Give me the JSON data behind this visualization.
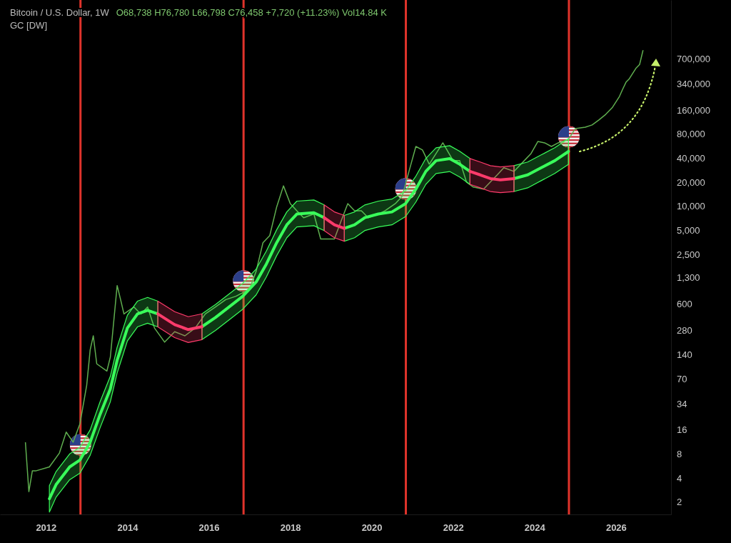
{
  "chart_data": {
    "type": "line",
    "title": "Bitcoin / U.S. Dollar, 1W",
    "subtitle": "GC [DW]",
    "annotations": [
      "O68,738 H76,780 L66,798 C76,458 +7,720 (+11.23%) Vol14.84 K"
    ],
    "log": "y",
    "grid": false,
    "xlim": [
      "2010-11-15",
      "2027-05-10"
    ],
    "xticks": [
      {
        "value": "2012",
        "label": "2012"
      },
      {
        "value": "2014",
        "label": "2014"
      },
      {
        "value": "2016",
        "label": "2016"
      },
      {
        "value": "2018",
        "label": "2018"
      },
      {
        "value": "2020",
        "label": "2020"
      },
      {
        "value": "2022",
        "label": "2022"
      },
      {
        "value": "2024",
        "label": "2024"
      },
      {
        "value": "2026",
        "label": "2026"
      }
    ],
    "ylim": [
      1.4,
      3800000
    ],
    "yticks": [
      2,
      4,
      8,
      16,
      34,
      70,
      140,
      280,
      600,
      {
        "value": 1300,
        "label": "1,300"
      },
      {
        "value": 2500,
        "label": "2,500"
      },
      {
        "value": 5000,
        "label": "5,000"
      },
      {
        "value": 10000,
        "label": "10,000"
      },
      {
        "value": 20000,
        "label": "20,000"
      },
      {
        "value": 40000,
        "label": "40,000"
      },
      {
        "value": 80000,
        "label": "80,000"
      },
      {
        "value": 160000,
        "label": "160,000"
      },
      {
        "value": 340000,
        "label": "340,000"
      },
      {
        "value": 700000,
        "label": "700,000"
      }
    ],
    "ref_lines": [
      {
        "axis": "x",
        "value": "2012-11-06",
        "color": "#e0332b"
      },
      {
        "axis": "x",
        "value": "2016-11-08",
        "color": "#e0332b"
      },
      {
        "axis": "x",
        "value": "2020-11-03",
        "color": "#e0332b"
      },
      {
        "axis": "x",
        "value": "2024-11-05",
        "color": "#e0332b"
      }
    ],
    "series": [
      {
        "color": "#5fae4f",
        "x": [
          "2011-07",
          "2011-08",
          "2011-09",
          "2011-10",
          "2012-02",
          "2012-05",
          "2012-07",
          "2012-09",
          "2012-11",
          "2013-01",
          "2013-02",
          "2013-03",
          "2013-04",
          "2013-07",
          "2013-08",
          "2013-10",
          "2013-11",
          "2013-12",
          "2014-03",
          "2014-05",
          "2014-07",
          "2014-09",
          "2014-12",
          "2015-03",
          "2015-06",
          "2015-09",
          "2015-12",
          "2016-03",
          "2016-06",
          "2016-09",
          "2017-01",
          "2017-03",
          "2017-05",
          "2017-07",
          "2017-09",
          "2017-11",
          "2018-01",
          "2018-03",
          "2018-05",
          "2018-08",
          "2018-10",
          "2018-12",
          "2019-02",
          "2019-04",
          "2019-06",
          "2019-08",
          "2019-10",
          "2019-12",
          "2020-03",
          "2020-05",
          "2020-08",
          "2020-10",
          "2020-12",
          "2021-02",
          "2021-04",
          "2021-06",
          "2021-08",
          "2021-10",
          "2022-01",
          "2022-03",
          "2022-05",
          "2022-07",
          "2022-10",
          "2022-12",
          "2023-02",
          "2023-04",
          "2023-07",
          "2023-10",
          "2023-12",
          "2024-02",
          "2024-04",
          "2024-06",
          "2024-08",
          "2024-11",
          "2025-01",
          "2025-04",
          "2025-06",
          "2025-08",
          "2025-10",
          "2025-12",
          "2026-02",
          "2026-03",
          "2026-04",
          "2026-05",
          "2026-07",
          "2026-08",
          "2026-09"
        ],
        "values": [
          11.2,
          2.7,
          4.9,
          4.9,
          5.5,
          8.2,
          15,
          11.2,
          19,
          58,
          160,
          240,
          107,
          87,
          130,
          1020,
          680,
          450,
          550,
          450,
          550,
          300,
          200,
          270,
          240,
          300,
          450,
          550,
          680,
          750,
          920,
          1540,
          3500,
          4300,
          9800,
          18000,
          10800,
          8800,
          7200,
          8000,
          3900,
          3900,
          3900,
          6500,
          10800,
          8800,
          8800,
          7200,
          8000,
          8800,
          10800,
          13300,
          27300,
          56000,
          50600,
          33600,
          45600,
          62100,
          37200,
          37200,
          20100,
          17400,
          16400,
          20100,
          24700,
          30300,
          27300,
          37200,
          45600,
          64700,
          62100,
          56000,
          62100,
          68900,
          93500,
          97500,
          104000,
          120000,
          141000,
          173000,
          236000,
          289000,
          356000,
          394000,
          536000,
          593000,
          895000
        ]
      },
      {
        "color": "#39ff5a",
        "x": [
          "2012-02",
          "2012-04",
          "2012-08",
          "2012-11",
          "2013-02",
          "2013-05",
          "2013-08",
          "2013-10",
          "2014-01",
          "2014-04",
          "2014-07",
          "2014-10",
          "2015-03",
          "2015-07",
          "2015-11",
          "2016-03",
          "2016-07",
          "2016-11",
          "2017-03",
          "2017-06",
          "2017-09",
          "2017-12",
          "2018-03",
          "2018-08",
          "2018-11",
          "2019-02",
          "2019-05",
          "2019-08",
          "2019-11",
          "2020-03",
          "2020-07",
          "2020-11",
          "2021-02",
          "2021-05",
          "2021-08",
          "2021-12",
          "2022-03",
          "2022-06",
          "2022-09",
          "2022-12",
          "2023-03",
          "2023-07",
          "2023-11",
          "2024-03",
          "2024-07",
          "2024-11"
        ],
        "values": [
          2.2,
          3.3,
          5.5,
          6.7,
          11.2,
          25,
          52,
          119,
          300,
          450,
          500,
          450,
          null,
          null,
          312,
          406,
          550,
          750,
          1130,
          1900,
          3500,
          5860,
          8000,
          8300,
          7200,
          null,
          5300,
          5860,
          7200,
          8000,
          8500,
          10800,
          16400,
          27300,
          37200,
          39500,
          33600,
          27300,
          null,
          null,
          null,
          22200,
          24700,
          30300,
          37200,
          48500
        ],
        "lower": [
          1.5,
          2.3,
          3.8,
          4.6,
          7.7,
          17,
          36,
          82,
          207,
          310,
          345,
          310,
          null,
          null,
          215,
          280,
          379,
          517,
          779,
          1310,
          2410,
          4040,
          5520,
          5720,
          4970,
          null,
          3660,
          4040,
          4970,
          5520,
          5860,
          7450,
          11300,
          18800,
          25700,
          27200,
          23200,
          18800,
          null,
          null,
          null,
          15300,
          17000,
          20900,
          25700,
          33400
        ],
        "upper": [
          3.2,
          4.8,
          8,
          9.7,
          16,
          36,
          75,
          173,
          435,
          650,
          725,
          650,
          null,
          null,
          452,
          589,
          798,
          1088,
          1640,
          2760,
          5080,
          8500,
          11600,
          12000,
          10400,
          null,
          7690,
          8500,
          10400,
          11600,
          12300,
          15700,
          23800,
          39600,
          53900,
          57300,
          48700,
          39600,
          null,
          null,
          null,
          32200,
          35800,
          43900,
          53900,
          70300
        ]
      },
      {
        "color": "#ff3b6b",
        "x": [
          "2014-10",
          "2015-03",
          "2015-07",
          "2015-11",
          "2017-01",
          "2018-11",
          "2019-02",
          "2019-05",
          "2021-01",
          "2022-06",
          "2022-09",
          "2022-12",
          "2023-03",
          "2023-07"
        ],
        "values": [
          450,
          331,
          287,
          312,
          null,
          7200,
          5860,
          5300,
          null,
          27300,
          24700,
          22200,
          21400,
          22200
        ],
        "lower": [
          310,
          228,
          198,
          215,
          null,
          4970,
          4040,
          3660,
          null,
          18800,
          17000,
          15300,
          14800,
          15300
        ],
        "upper": [
          650,
          480,
          416,
          452,
          null,
          10400,
          8500,
          7690,
          null,
          39600,
          35800,
          32200,
          31000,
          32200
        ]
      }
    ]
  }
}
